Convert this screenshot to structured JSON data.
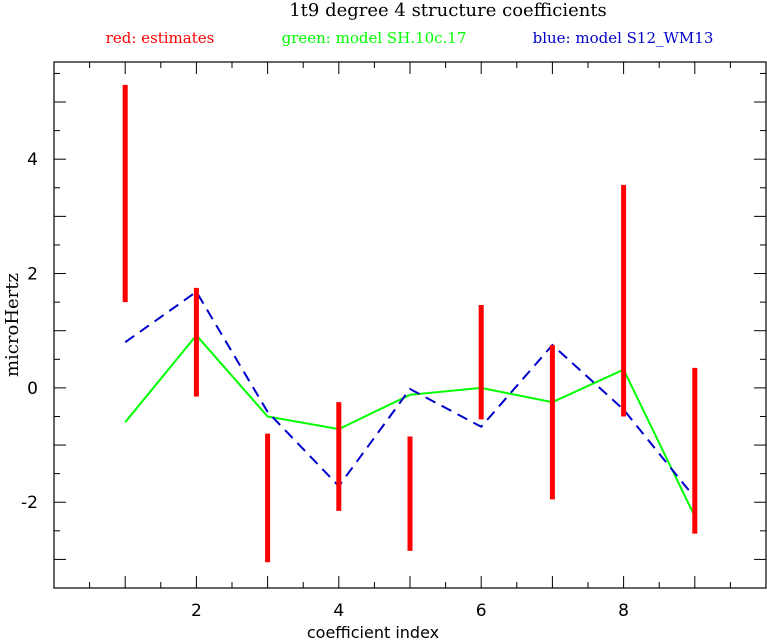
{
  "chart_data": {
    "type": "errorbar-line",
    "title": "1t9 degree 4 structure coefficients",
    "xlabel": "coefficient index",
    "ylabel": "microHertz",
    "xlim": [
      0,
      10
    ],
    "ylim": [
      -3.5,
      5.7
    ],
    "x_ticks": [
      2,
      4,
      6,
      8
    ],
    "y_ticks": [
      -2,
      0,
      2,
      4
    ],
    "grid": false,
    "legend_position": "top",
    "colors": {
      "estimates": "#ff0000",
      "sh": "#00ff00",
      "s12": "#0000cc",
      "text": "#000000"
    },
    "legend": [
      {
        "key": "estimates",
        "text": "red: estimates"
      },
      {
        "key": "sh",
        "text": "green: model SH.10c.17"
      },
      {
        "key": "s12",
        "text": "blue: model S12_WM13"
      }
    ],
    "estimates": [
      {
        "x": 1,
        "low": 1.5,
        "high": 5.3
      },
      {
        "x": 2,
        "low": -0.15,
        "high": 1.75
      },
      {
        "x": 3,
        "low": -3.05,
        "high": -0.8
      },
      {
        "x": 4,
        "low": -2.15,
        "high": -0.25
      },
      {
        "x": 5,
        "low": -2.85,
        "high": -0.85
      },
      {
        "x": 6,
        "low": -0.55,
        "high": 1.45
      },
      {
        "x": 7,
        "low": -1.95,
        "high": 0.75
      },
      {
        "x": 8,
        "low": -0.5,
        "high": 3.55
      },
      {
        "x": 9,
        "low": -2.55,
        "high": 0.35
      }
    ],
    "series": [
      {
        "key": "sh",
        "style": "solid",
        "x": [
          1,
          2,
          3,
          4,
          5,
          6,
          7,
          8,
          9
        ],
        "y": [
          -0.6,
          0.92,
          -0.5,
          -0.72,
          -0.12,
          0.0,
          -0.25,
          0.32,
          -2.25
        ]
      },
      {
        "key": "s12",
        "style": "dashed",
        "x": [
          1,
          2,
          3,
          4,
          5,
          6,
          7,
          8,
          9
        ],
        "y": [
          0.8,
          1.68,
          -0.42,
          -1.72,
          -0.02,
          -0.68,
          0.75,
          -0.38,
          -1.92
        ]
      }
    ]
  }
}
